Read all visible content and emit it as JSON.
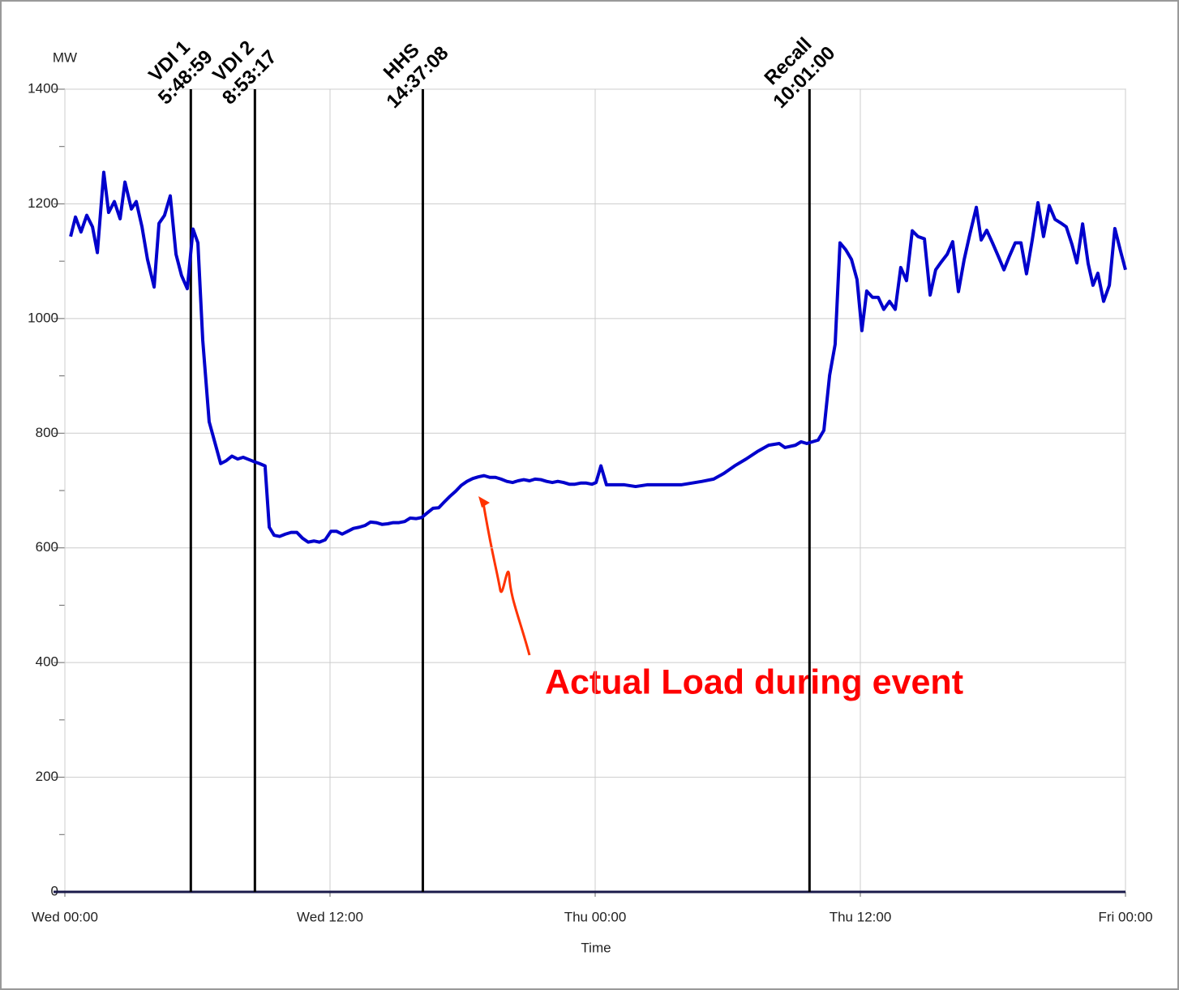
{
  "chart_data": {
    "type": "line",
    "xlabel": "Time",
    "ylabel": "MW",
    "xlim": [
      0,
      48
    ],
    "xticks": [
      {
        "value": 0,
        "label": "Wed 00:00"
      },
      {
        "value": 12,
        "label": "Wed 12:00"
      },
      {
        "value": 24,
        "label": "Thu 00:00"
      },
      {
        "value": 36,
        "label": "Thu 12:00"
      },
      {
        "value": 48,
        "label": "Fri 00:00"
      }
    ],
    "ylim": [
      0,
      1400
    ],
    "yticks": [
      0,
      200,
      400,
      600,
      800,
      1000,
      1200,
      1400
    ],
    "grid": true,
    "events": [
      {
        "label": [
          "VDI 1",
          "5:48:59"
        ],
        "x": 5.7
      },
      {
        "label": [
          "VDI 2",
          "8:53:17"
        ],
        "x": 8.6
      },
      {
        "label": [
          "HHS",
          "14:37:08"
        ],
        "x": 16.2
      },
      {
        "label": [
          "Recall",
          "10:01:00"
        ],
        "x": 33.7
      }
    ],
    "annotation": "Actual Load during event",
    "series": [
      {
        "name": "Actual Load",
        "color": "#0000cc",
        "x": [
          0.26,
          0.48,
          0.73,
          0.99,
          1.25,
          1.47,
          1.76,
          1.98,
          2.24,
          2.5,
          2.72,
          3.01,
          3.23,
          3.49,
          3.74,
          4.04,
          4.26,
          4.51,
          4.77,
          5.03,
          5.28,
          5.54,
          5.8,
          6.02,
          6.24,
          6.53,
          6.83,
          7.05,
          7.3,
          7.56,
          7.82,
          8.07,
          8.33,
          8.59,
          8.81,
          9.06,
          9.25,
          9.47,
          9.72,
          9.98,
          10.24,
          10.5,
          10.75,
          11.01,
          11.27,
          11.52,
          11.78,
          12.04,
          12.29,
          12.55,
          12.81,
          13.06,
          13.32,
          13.58,
          13.83,
          14.09,
          14.35,
          14.61,
          14.86,
          15.12,
          15.38,
          15.63,
          15.89,
          16.15,
          16.4,
          16.66,
          16.92,
          17.17,
          17.43,
          17.69,
          17.94,
          18.2,
          18.46,
          18.72,
          18.97,
          19.23,
          19.49,
          19.74,
          20.0,
          20.26,
          20.51,
          20.77,
          21.03,
          21.28,
          21.54,
          21.8,
          22.06,
          22.31,
          22.57,
          22.83,
          23.08,
          23.34,
          23.6,
          23.85,
          24.04,
          24.26,
          24.51,
          24.77,
          25.32,
          25.83,
          26.35,
          27.89,
          28.37,
          28.84,
          29.36,
          29.83,
          30.31,
          30.83,
          31.34,
          31.85,
          32.33,
          32.59,
          33.06,
          33.32,
          33.58,
          33.83,
          34.09,
          34.35,
          34.61,
          34.86,
          35.08,
          35.34,
          35.6,
          35.85,
          36.07,
          36.29,
          36.55,
          36.81,
          37.06,
          37.32,
          37.58,
          37.83,
          38.09,
          38.35,
          38.61,
          38.9,
          39.16,
          39.41,
          39.67,
          39.93,
          40.18,
          40.44,
          40.7,
          40.95,
          41.25,
          41.47,
          41.72,
          41.98,
          42.24,
          42.5,
          42.75,
          43.01,
          43.27,
          43.52,
          43.78,
          44.04,
          44.29,
          44.55,
          44.81,
          45.06,
          45.32,
          45.58,
          45.8,
          46.06,
          46.31,
          46.53,
          46.75,
          47.01,
          47.27,
          47.52,
          47.78,
          48.0
        ],
        "values": [
          1143,
          1177,
          1151,
          1180,
          1160,
          1115,
          1255,
          1185,
          1204,
          1174,
          1238,
          1191,
          1204,
          1160,
          1103,
          1055,
          1166,
          1180,
          1214,
          1112,
          1075,
          1052,
          1156,
          1132,
          962,
          820,
          778,
          747,
          752,
          760,
          755,
          758,
          754,
          750,
          747,
          743,
          636,
          622,
          620,
          624,
          627,
          627,
          617,
          610,
          612,
          610,
          614,
          629,
          629,
          624,
          629,
          634,
          636,
          639,
          645,
          644,
          641,
          642,
          644,
          644,
          646,
          652,
          651,
          653,
          661,
          669,
          670,
          680,
          690,
          699,
          709,
          716,
          721,
          724,
          726,
          723,
          723,
          720,
          716,
          714,
          717,
          719,
          717,
          720,
          719,
          716,
          714,
          716,
          714,
          711,
          711,
          713,
          713,
          711,
          714,
          743,
          710,
          710,
          710,
          707,
          710,
          710,
          713,
          716,
          720,
          730,
          743,
          755,
          768,
          779,
          782,
          775,
          779,
          785,
          782,
          785,
          788,
          805,
          901,
          955,
          1132,
          1120,
          1103,
          1068,
          979,
          1048,
          1037,
          1037,
          1016,
          1030,
          1016,
          1089,
          1066,
          1153,
          1143,
          1139,
          1041,
          1085,
          1099,
          1112,
          1134,
          1047,
          1103,
          1146,
          1194,
          1137,
          1154,
          1132,
          1109,
          1085,
          1109,
          1132,
          1132,
          1078,
          1137,
          1202,
          1143,
          1197,
          1173,
          1167,
          1160,
          1129,
          1097,
          1165,
          1096,
          1058,
          1079,
          1030,
          1058,
          1157,
          1117,
          1085
        ]
      }
    ]
  }
}
